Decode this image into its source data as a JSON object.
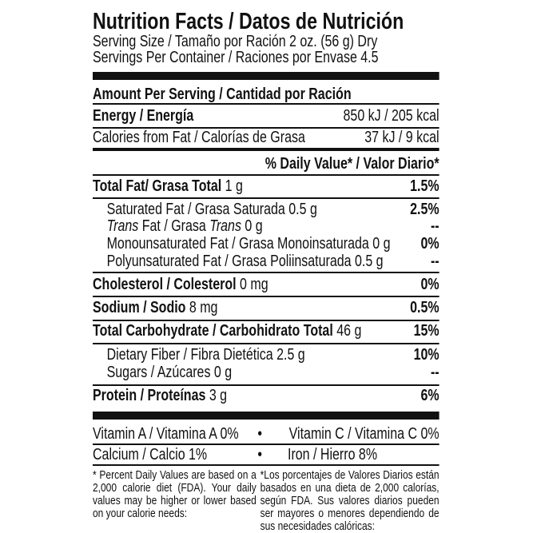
{
  "title": "Nutrition Facts / Datos de Nutrición",
  "serving_size": "Serving Size / Tamaño por Ración 2 oz. (56 g) Dry",
  "servings_per_container": "Servings Per Container / Raciones por Envase 4.5",
  "amount_per_serving": "Amount Per Serving / Cantidad por Ración",
  "energy": {
    "label": "Energy / Energía",
    "value": "850 kJ / 205 kcal"
  },
  "calories_fat": {
    "label": "Calories from Fat / Calorías de Grasa",
    "value": "37 kJ / 9 kcal"
  },
  "daily_value_header": "% Daily Value* / Valor Diario*",
  "nutrients": {
    "total_fat": {
      "label": "Total Fat/  Grasa Total",
      "amount": " 1 g",
      "dv": "1.5%"
    },
    "saturated_fat": {
      "label": "Saturated Fat / Grasa Saturada 0.5 g",
      "dv": "2.5%"
    },
    "trans_fat": {
      "label_a": "Trans",
      "label_b": " Fat / Grasa ",
      "label_c": "Trans",
      "label_d": " 0 g",
      "dv": "--"
    },
    "mono_fat": {
      "label": "Monounsaturated Fat / Grasa Monoinsaturada 0 g",
      "dv": "0%"
    },
    "poly_fat": {
      "label": "Polyunsaturated Fat / Grasa Poliinsaturada 0.5 g",
      "dv": "--"
    },
    "cholesterol": {
      "label": "Cholesterol / Colesterol",
      "amount": " 0 mg",
      "dv": "0%"
    },
    "sodium": {
      "label": "Sodium / Sodio",
      "amount": " 8 mg",
      "dv": "0.5%"
    },
    "carbohydrate": {
      "label": "Total Carbohydrate / Carbohidrato Total",
      "amount": " 46 g",
      "dv": "15%"
    },
    "fiber": {
      "label": "Dietary Fiber / Fibra Dietética 2.5 g",
      "dv": "10%"
    },
    "sugars": {
      "label": "Sugars / Azúcares 0 g",
      "dv": "--"
    },
    "protein": {
      "label": "Protein / Proteínas",
      "amount": " 3 g",
      "dv": "6%"
    }
  },
  "vitamins": {
    "vitamin_a": "Vitamin A / Vitamina A 0%",
    "vitamin_c": "Vitamin C / Vitamina C 0%",
    "calcium": "Calcium / Calcio 1%",
    "iron": "Iron / Hierro 8%",
    "bullet": "•"
  },
  "footnote_en": "* Percent Daily Values are based on a 2,000 calorie diet (FDA). Your daily values may be higher or lower based on your calorie needs:",
  "footnote_es": "*Los porcentajes de Valores Diarios están basados en una dieta de 2,000 calorías, según FDA. Sus valores diarios pueden ser mayores o menores dependiendo de sus necesidades calóricas:"
}
